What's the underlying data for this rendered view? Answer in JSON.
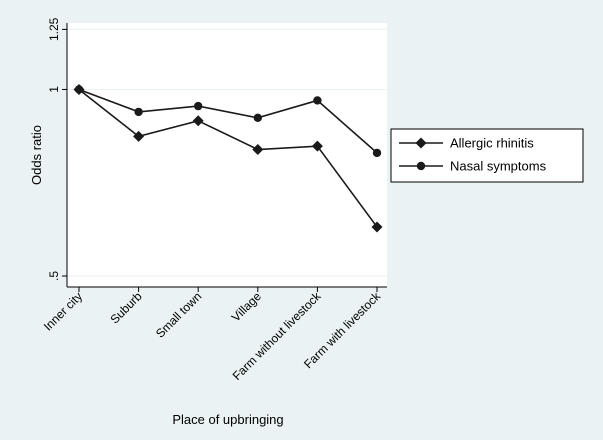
{
  "chart_data": {
    "type": "line",
    "xlabel": "Place of upbringing",
    "ylabel": "Odds ratio",
    "y_scale": "log",
    "ylim": [
      0.48,
      1.28
    ],
    "y_ticks": [
      {
        "value": 0.5,
        "label": ".5"
      },
      {
        "value": 1,
        "label": "1"
      },
      {
        "value": 1.25,
        "label": "1.25"
      }
    ],
    "grid": true,
    "legend_position": "right",
    "categories": [
      "Inner city",
      "Suburb",
      "Small town",
      "Village",
      "Farm without livestock",
      "Farm with livestock"
    ],
    "series": [
      {
        "name": "Allergic rhinitis",
        "marker": "diamond",
        "values": [
          1.0,
          0.84,
          0.89,
          0.8,
          0.81,
          0.6
        ]
      },
      {
        "name": "Nasal symptoms",
        "marker": "circle",
        "values": [
          1.0,
          0.92,
          0.94,
          0.9,
          0.96,
          0.79
        ]
      }
    ],
    "colors": {
      "background": "#eaf2f3",
      "plot_area": "#ffffff",
      "grid": "#eaf2f3",
      "line": "#1a1a1a"
    }
  }
}
